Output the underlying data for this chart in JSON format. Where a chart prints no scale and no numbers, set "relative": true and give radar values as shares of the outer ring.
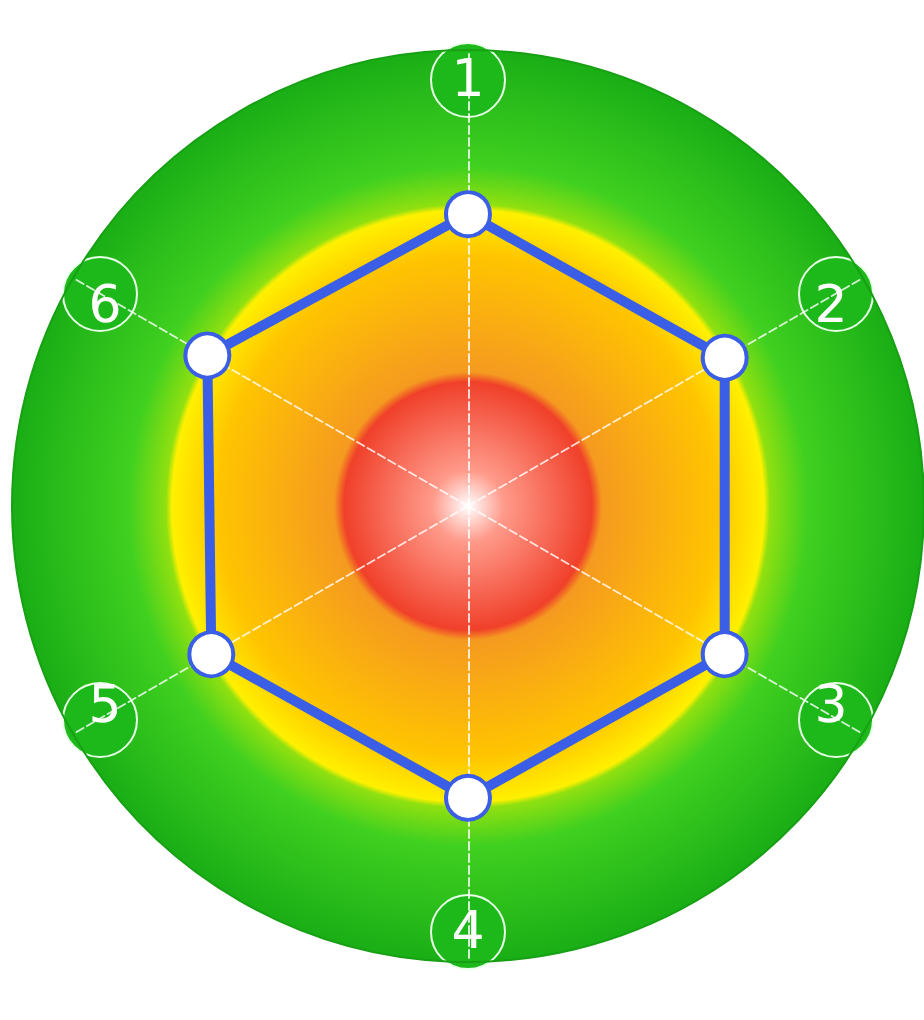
{
  "chart_data": {
    "type": "radar",
    "relative": true,
    "categories": [
      "1",
      "2",
      "3",
      "4",
      "5",
      "6"
    ],
    "series": [
      {
        "color": "#3b5ee6",
        "values": [
          0.64,
          0.65,
          0.65,
          0.64,
          0.65,
          0.66
        ]
      }
    ],
    "marker": "circle",
    "line_style": "solid"
  }
}
